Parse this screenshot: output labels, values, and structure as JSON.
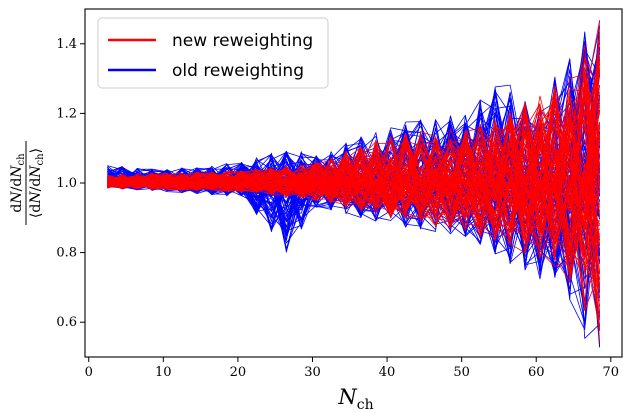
{
  "chart_data": {
    "type": "line",
    "title": "",
    "xlabel": "N_ch",
    "ylabel": "dN/dN_ch / <dN/dN_ch>",
    "xlim": [
      -0.5,
      71.5
    ],
    "ylim": [
      0.5,
      1.5
    ],
    "xticks": [
      0,
      10,
      20,
      30,
      40,
      50,
      60,
      70
    ],
    "yticks": [
      0.6,
      0.8,
      1.0,
      1.2,
      1.4
    ],
    "x_range_of_data": [
      2.5,
      69.5
    ],
    "bin_width": 2.0,
    "n_lines_per_series": 100,
    "grid": false,
    "legend_position": "upper-left",
    "series": [
      {
        "name": "new reweighting",
        "color": "#ff0000",
        "envelope": {
          "x": [
            2.5,
            10.5,
            20.5,
            30.5,
            40.5,
            50.5,
            55.5,
            60.5,
            63.5,
            65.5,
            67.5,
            69.5
          ],
          "lower": [
            0.985,
            0.98,
            0.975,
            0.95,
            0.9,
            0.86,
            0.82,
            0.78,
            0.72,
            0.7,
            0.5,
            0.55
          ],
          "upper": [
            1.025,
            1.03,
            1.035,
            1.06,
            1.14,
            1.16,
            1.2,
            1.25,
            1.3,
            1.3,
            1.5,
            1.5
          ]
        }
      },
      {
        "name": "old reweighting",
        "color": "#0000ff",
        "envelope": {
          "x": [
            2.5,
            10.5,
            20.5,
            26.5,
            30.5,
            40.5,
            50.5,
            55.5,
            60.5,
            63.5,
            65.5,
            67.5,
            69.5
          ],
          "lower": [
            0.985,
            0.975,
            0.96,
            0.8,
            0.93,
            0.88,
            0.84,
            0.78,
            0.72,
            0.72,
            0.55,
            0.5,
            0.5
          ],
          "upper": [
            1.05,
            1.04,
            1.06,
            1.1,
            1.08,
            1.17,
            1.2,
            1.3,
            1.22,
            1.35,
            1.4,
            1.5,
            1.5
          ]
        }
      }
    ]
  }
}
